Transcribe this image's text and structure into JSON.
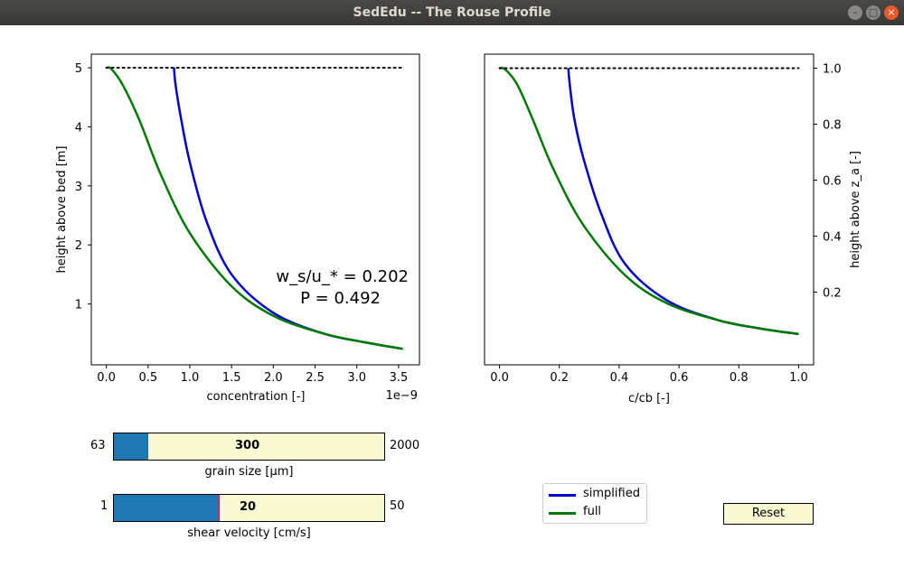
{
  "window": {
    "title": "SedEdu -- The Rouse Profile"
  },
  "colors": {
    "simplified": "#0000cc",
    "full": "#007a00",
    "slider_fill": "#1f77b4",
    "slider_bg": "#fafad2",
    "slider_marker": "#d62728"
  },
  "chart_data": [
    {
      "type": "line",
      "xlabel": "concentration [-]",
      "ylabel": "height above bed [m]",
      "x_offset_label": "1e−9",
      "xlim": [
        -0.18,
        3.75
      ],
      "ylim": [
        -0.03,
        5.23
      ],
      "x_ticks": [
        0.0,
        0.5,
        1.0,
        1.5,
        2.0,
        2.5,
        3.0,
        3.5
      ],
      "x_tick_labels": [
        "0.0",
        "0.5",
        "1.0",
        "1.5",
        "2.0",
        "2.5",
        "3.0",
        "3.5"
      ],
      "y_ticks": [
        1,
        2,
        3,
        4,
        5
      ],
      "y_tick_labels": [
        "1",
        "2",
        "3",
        "4",
        "5"
      ],
      "series": [
        {
          "name": "simplified",
          "color": "#0000cc",
          "x": [
            0.81,
            0.83,
            0.9,
            1.0,
            1.2,
            1.5,
            2.0,
            2.6,
            3.1,
            3.55
          ],
          "y": [
            5.0,
            4.7,
            4.1,
            3.4,
            2.4,
            1.5,
            0.85,
            0.5,
            0.35,
            0.24
          ]
        },
        {
          "name": "full",
          "color": "#007a00",
          "x": [
            0.0,
            0.06,
            0.2,
            0.4,
            0.65,
            1.0,
            1.5,
            2.0,
            2.6,
            3.1,
            3.55
          ],
          "y": [
            5.0,
            4.98,
            4.7,
            4.1,
            3.2,
            2.2,
            1.3,
            0.8,
            0.5,
            0.35,
            0.24
          ]
        },
        {
          "name": "surface",
          "color": "#000000",
          "style": "dotted",
          "x": [
            0.0,
            3.55
          ],
          "y": [
            5.0,
            5.0
          ]
        }
      ],
      "annotations": [
        "w_s/u_* = 0.202",
        "P = 0.492"
      ]
    },
    {
      "type": "line",
      "xlabel": "c/cb [-]",
      "ylabel": "height above z_a [-]",
      "xlim": [
        -0.05,
        1.05
      ],
      "ylim": [
        -0.06,
        1.05
      ],
      "x_ticks": [
        0.0,
        0.2,
        0.4,
        0.6,
        0.8,
        1.0
      ],
      "x_tick_labels": [
        "0.0",
        "0.2",
        "0.4",
        "0.6",
        "0.8",
        "1.0"
      ],
      "y_ticks": [
        0.2,
        0.4,
        0.6,
        0.8,
        1.0
      ],
      "y_tick_labels": [
        "0.2",
        "0.4",
        "0.6",
        "0.8",
        "1.0"
      ],
      "series": [
        {
          "name": "simplified",
          "color": "#0000cc",
          "x": [
            0.23,
            0.235,
            0.25,
            0.28,
            0.34,
            0.42,
            0.56,
            0.73,
            0.87,
            1.0
          ],
          "y": [
            1.0,
            0.94,
            0.82,
            0.68,
            0.48,
            0.3,
            0.17,
            0.1,
            0.07,
            0.05
          ]
        },
        {
          "name": "full",
          "color": "#007a00",
          "x": [
            0.0,
            0.02,
            0.06,
            0.11,
            0.18,
            0.28,
            0.42,
            0.56,
            0.73,
            0.87,
            1.0
          ],
          "y": [
            1.0,
            0.995,
            0.94,
            0.82,
            0.64,
            0.44,
            0.26,
            0.16,
            0.1,
            0.07,
            0.05
          ]
        },
        {
          "name": "surface",
          "color": "#000000",
          "style": "dotted",
          "x": [
            0.0,
            1.0
          ],
          "y": [
            1.0,
            1.0
          ]
        }
      ]
    }
  ],
  "sliders": {
    "grain": {
      "min_label": "63",
      "max_label": "2000",
      "value_label": "300",
      "label": "grain size [μm]",
      "fill_fraction": 0.123
    },
    "shear": {
      "min_label": "1",
      "max_label": "50",
      "value_label": "20",
      "label": "shear velocity [cm/s]",
      "fill_fraction": 0.388
    }
  },
  "legend": {
    "items": [
      {
        "label": "simplified"
      },
      {
        "label": "full"
      }
    ]
  },
  "reset_button": {
    "label": "Reset"
  }
}
